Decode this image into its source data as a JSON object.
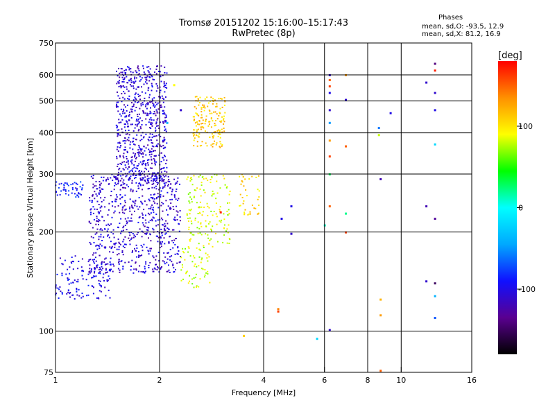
{
  "title": "Tromsø 20151202 15:16:00–15:17:43",
  "subtitle": "RwPretec (8p)",
  "stats": {
    "heading": "Phases",
    "line_o": "mean, sd,O: -93.5, 12.9",
    "line_x": "mean, sd,X:  81.2, 16.9"
  },
  "chart_data": {
    "type": "scatter",
    "xlabel": "Frequency [MHz]",
    "ylabel": "Stationary phase Virtual Height [km]",
    "x_scale": "log",
    "y_scale": "log",
    "xlim": [
      1,
      16
    ],
    "ylim": [
      75,
      750
    ],
    "x_ticks": [
      "1",
      "2",
      "4",
      "6",
      "8",
      "10",
      "16"
    ],
    "y_ticks": [
      "75",
      "100",
      "200",
      "300",
      "400",
      "500",
      "600",
      "750"
    ],
    "grid": true,
    "colorbar": {
      "label": "[deg]",
      "range": [
        -180,
        180
      ],
      "ticks": [
        "100",
        "0",
        "-100"
      ],
      "colors": [
        "#000000",
        "#5a0090",
        "#1010ff",
        "#00a8ff",
        "#00ffff",
        "#00ff00",
        "#ffff00",
        "#ff9000",
        "#ff0000"
      ]
    },
    "clusters": [
      {
        "name": "O-trace low",
        "x": [
          1.0,
          1.45
        ],
        "y": [
          125,
          170
        ],
        "phase": -100,
        "n": 140
      },
      {
        "name": "O-trace ledge",
        "x": [
          1.0,
          1.2
        ],
        "y": [
          255,
          285
        ],
        "phase": -85,
        "n": 50
      },
      {
        "name": "O-trace F",
        "x": [
          1.25,
          2.3
        ],
        "y": [
          150,
          300
        ],
        "phase": -108,
        "n": 700
      },
      {
        "name": "O-trace top",
        "x": [
          1.5,
          2.1
        ],
        "y": [
          280,
          640
        ],
        "phase": -108,
        "n": 700
      },
      {
        "name": "X-trace top",
        "x": [
          2.5,
          3.1
        ],
        "y": [
          360,
          520
        ],
        "phase": 110,
        "n": 170
      },
      {
        "name": "X-trace mid",
        "x": [
          2.4,
          3.2
        ],
        "y": [
          180,
          300
        ],
        "phase": 85,
        "n": 160
      },
      {
        "name": "X-trace low",
        "x": [
          2.3,
          2.8
        ],
        "y": [
          135,
          180
        ],
        "phase": 80,
        "n": 60
      },
      {
        "name": "X-trace right",
        "x": [
          3.4,
          3.9
        ],
        "y": [
          225,
          300
        ],
        "phase": 105,
        "n": 40
      }
    ],
    "isolated_points": [
      {
        "x": 6.2,
        "y": 600,
        "phase": -110
      },
      {
        "x": 6.2,
        "y": 580,
        "phase": 150
      },
      {
        "x": 6.2,
        "y": 555,
        "phase": 160
      },
      {
        "x": 6.2,
        "y": 530,
        "phase": -100
      },
      {
        "x": 6.2,
        "y": 470,
        "phase": -110
      },
      {
        "x": 6.2,
        "y": 430,
        "phase": -50
      },
      {
        "x": 6.2,
        "y": 380,
        "phase": 130
      },
      {
        "x": 6.2,
        "y": 340,
        "phase": 160
      },
      {
        "x": 6.2,
        "y": 300,
        "phase": 30
      },
      {
        "x": 6.2,
        "y": 240,
        "phase": 150
      },
      {
        "x": 6.2,
        "y": 101,
        "phase": -110
      },
      {
        "x": 6.0,
        "y": 210,
        "phase": 10
      },
      {
        "x": 6.9,
        "y": 600,
        "phase": 130
      },
      {
        "x": 6.9,
        "y": 505,
        "phase": -110
      },
      {
        "x": 6.9,
        "y": 365,
        "phase": 150
      },
      {
        "x": 6.9,
        "y": 228,
        "phase": 20
      },
      {
        "x": 6.9,
        "y": 200,
        "phase": 160
      },
      {
        "x": 9.3,
        "y": 460,
        "phase": -100
      },
      {
        "x": 8.6,
        "y": 415,
        "phase": -60
      },
      {
        "x": 8.6,
        "y": 395,
        "phase": 80
      },
      {
        "x": 8.7,
        "y": 290,
        "phase": -120
      },
      {
        "x": 8.7,
        "y": 125,
        "phase": 120
      },
      {
        "x": 8.7,
        "y": 112,
        "phase": 130
      },
      {
        "x": 8.7,
        "y": 76,
        "phase": 150
      },
      {
        "x": 12.5,
        "y": 650,
        "phase": -140
      },
      {
        "x": 12.5,
        "y": 620,
        "phase": 170
      },
      {
        "x": 11.8,
        "y": 570,
        "phase": -110
      },
      {
        "x": 12.5,
        "y": 530,
        "phase": -110
      },
      {
        "x": 12.5,
        "y": 470,
        "phase": -100
      },
      {
        "x": 12.5,
        "y": 370,
        "phase": -20
      },
      {
        "x": 11.8,
        "y": 240,
        "phase": -120
      },
      {
        "x": 12.5,
        "y": 220,
        "phase": -130
      },
      {
        "x": 11.8,
        "y": 142,
        "phase": -110
      },
      {
        "x": 12.5,
        "y": 140,
        "phase": -150
      },
      {
        "x": 12.5,
        "y": 128,
        "phase": -40
      },
      {
        "x": 12.5,
        "y": 110,
        "phase": -70
      },
      {
        "x": 4.8,
        "y": 240,
        "phase": -100
      },
      {
        "x": 4.8,
        "y": 198,
        "phase": -110
      },
      {
        "x": 4.5,
        "y": 220,
        "phase": -100
      },
      {
        "x": 4.4,
        "y": 117,
        "phase": 140
      },
      {
        "x": 4.4,
        "y": 115,
        "phase": 160
      },
      {
        "x": 5.7,
        "y": 95,
        "phase": -20
      },
      {
        "x": 3.5,
        "y": 97,
        "phase": 110
      },
      {
        "x": 3.0,
        "y": 230,
        "phase": 170
      },
      {
        "x": 2.3,
        "y": 470,
        "phase": -110
      },
      {
        "x": 2.1,
        "y": 430,
        "phase": -40
      },
      {
        "x": 2.2,
        "y": 560,
        "phase": 90
      }
    ]
  }
}
